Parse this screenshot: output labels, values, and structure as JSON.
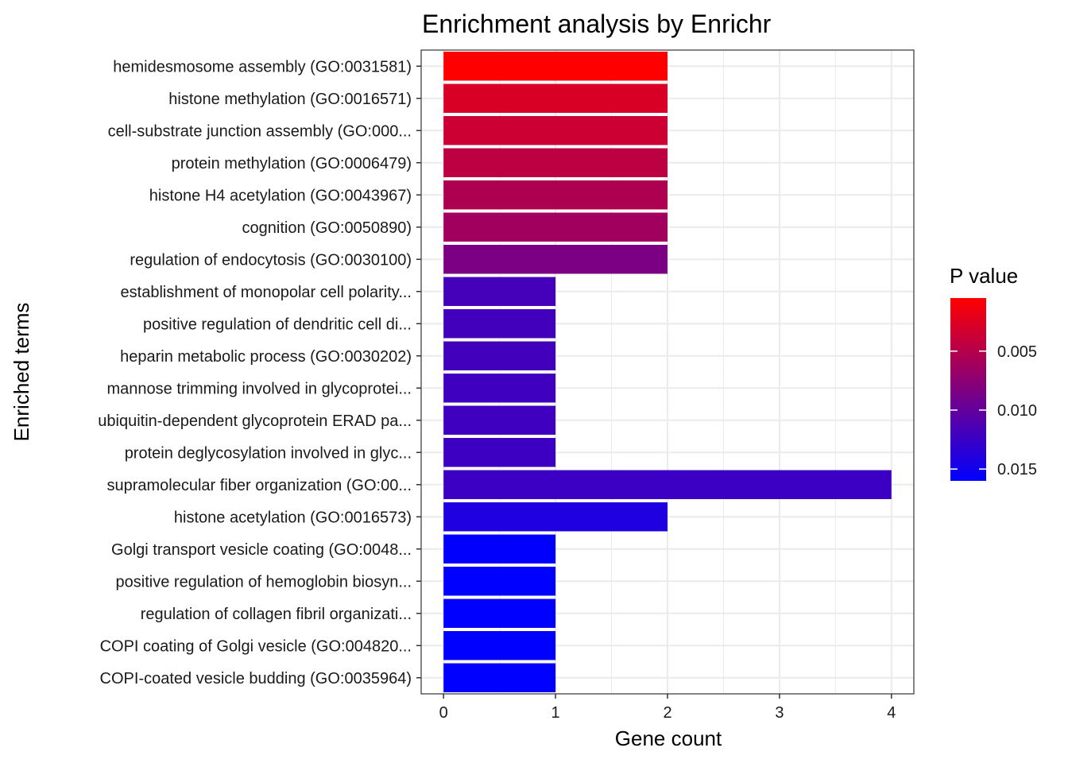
{
  "chart_data": {
    "type": "bar",
    "orientation": "horizontal",
    "title": "Enrichment analysis by Enrichr",
    "xlabel": "Gene count",
    "ylabel": "Enriched terms",
    "xlim": [
      -0.2,
      4.2
    ],
    "xticks": [
      0,
      1,
      2,
      3,
      4
    ],
    "grid": true,
    "categories": [
      "hemidesmosome assembly (GO:0031581)",
      "histone methylation (GO:0016571)",
      "cell-substrate junction assembly (GO:000...",
      "protein methylation (GO:0006479)",
      "histone H4 acetylation (GO:0043967)",
      "cognition (GO:0050890)",
      "regulation of endocytosis (GO:0030100)",
      "establishment of monopolar cell polarity...",
      "positive regulation of dendritic cell di...",
      "heparin metabolic process (GO:0030202)",
      "mannose trimming involved in glycoprotei...",
      "ubiquitin-dependent glycoprotein ERAD pa...",
      "protein deglycosylation involved in glyc...",
      "supramolecular fiber organization (GO:00...",
      "histone acetylation (GO:0016573)",
      "Golgi transport vesicle coating (GO:0048...",
      "positive regulation of hemoglobin biosyn...",
      "regulation of collagen fibril organizati...",
      "COPI coating of Golgi vesicle (GO:004820...",
      "COPI-coated vesicle budding (GO:0035964)"
    ],
    "values": [
      2,
      2,
      2,
      2,
      2,
      2,
      2,
      1,
      1,
      1,
      1,
      1,
      1,
      4,
      2,
      1,
      1,
      1,
      1,
      1
    ],
    "p_values": [
      0.0005,
      0.0028,
      0.0036,
      0.0045,
      0.0054,
      0.0062,
      0.0085,
      0.0118,
      0.0119,
      0.012,
      0.0121,
      0.0122,
      0.0123,
      0.0124,
      0.0142,
      0.0159,
      0.016,
      0.016,
      0.016,
      0.016
    ],
    "legend": {
      "title": "P value",
      "placement": "right",
      "p_min": 0.0005,
      "p_max": 0.016,
      "low_color": "#FF0000",
      "high_color": "#0000FF",
      "ticks": [
        {
          "value": 0.005,
          "label": "0.005"
        },
        {
          "value": 0.01,
          "label": "0.010"
        },
        {
          "value": 0.015,
          "label": "0.015"
        }
      ]
    }
  }
}
